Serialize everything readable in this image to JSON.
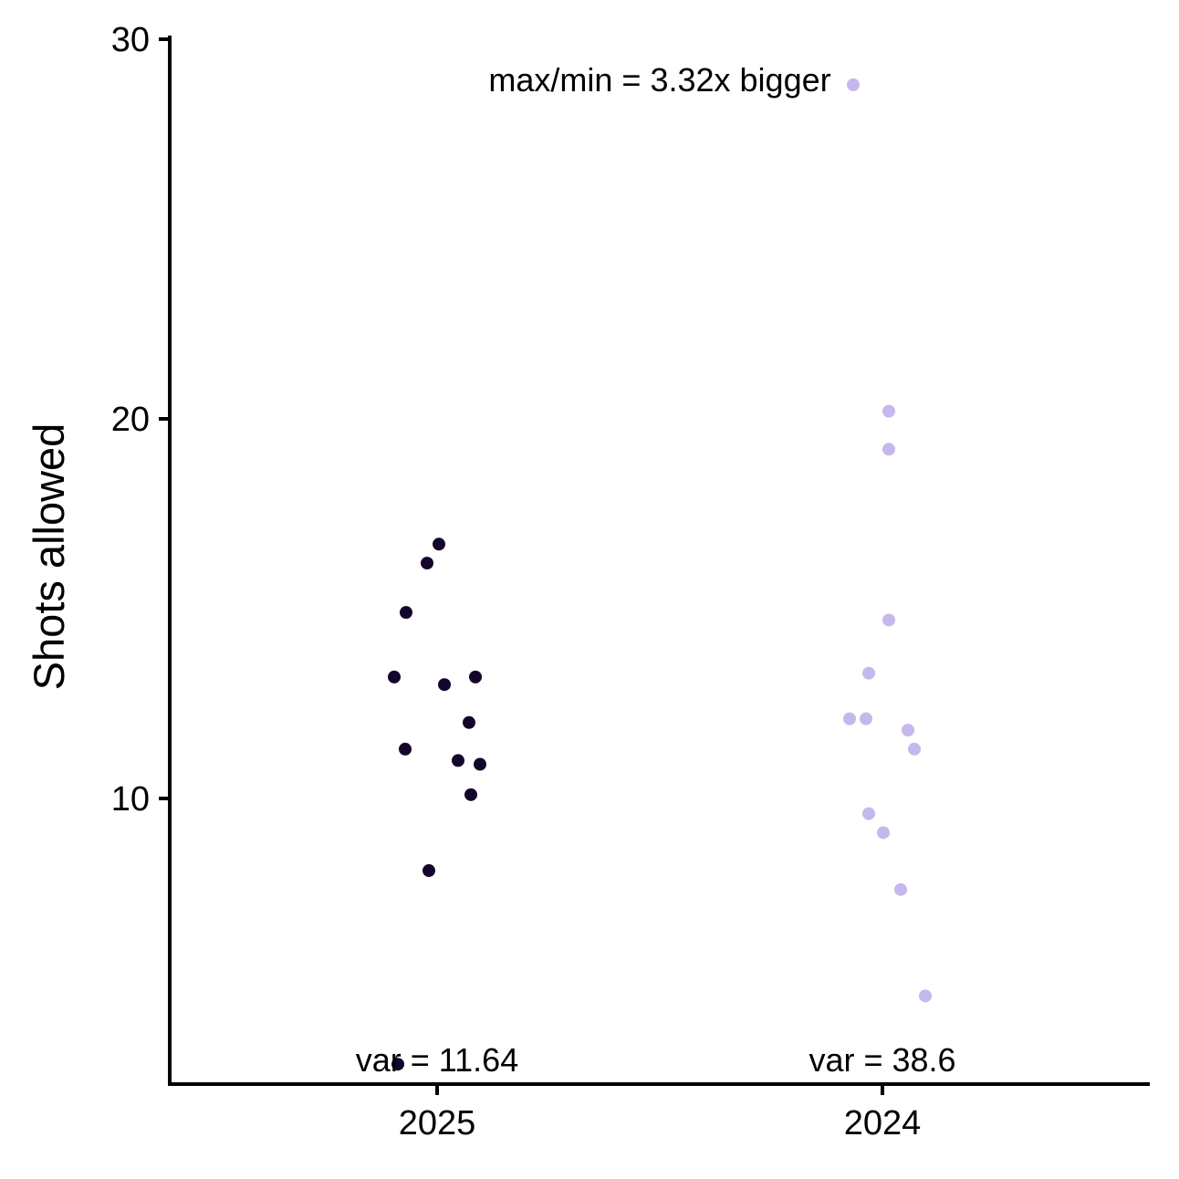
{
  "chart_data": {
    "type": "scatter",
    "title": "",
    "xlabel": "",
    "ylabel": "Shots allowed",
    "categories": [
      "2025",
      "2024"
    ],
    "ylim": [
      2.3,
      30
    ],
    "yticks": [
      10,
      20,
      30
    ],
    "grid": false,
    "legend": "none",
    "series": [
      {
        "category": "2025",
        "color": "#14062b",
        "points": [
          {
            "x": "2025",
            "y": 16.7
          },
          {
            "x": "2025",
            "y": 16.2
          },
          {
            "x": "2025",
            "y": 14.9
          },
          {
            "x": "2025",
            "y": 13.2
          },
          {
            "x": "2025",
            "y": 13.0
          },
          {
            "x": "2025",
            "y": 13.2
          },
          {
            "x": "2025",
            "y": 12.0
          },
          {
            "x": "2025",
            "y": 11.3
          },
          {
            "x": "2025",
            "y": 11.0
          },
          {
            "x": "2025",
            "y": 10.9
          },
          {
            "x": "2025",
            "y": 10.1
          },
          {
            "x": "2025",
            "y": 8.1
          },
          {
            "x": "2025",
            "y": 3.0
          }
        ]
      },
      {
        "category": "2024",
        "color": "#c6b8ec",
        "points": [
          {
            "x": "2024",
            "y": 28.8
          },
          {
            "x": "2024",
            "y": 20.2
          },
          {
            "x": "2024",
            "y": 19.2
          },
          {
            "x": "2024",
            "y": 14.7
          },
          {
            "x": "2024",
            "y": 13.3
          },
          {
            "x": "2024",
            "y": 12.1
          },
          {
            "x": "2024",
            "y": 12.1
          },
          {
            "x": "2024",
            "y": 11.8
          },
          {
            "x": "2024",
            "y": 11.3
          },
          {
            "x": "2024",
            "y": 9.6
          },
          {
            "x": "2024",
            "y": 9.1
          },
          {
            "x": "2024",
            "y": 7.6
          },
          {
            "x": "2024",
            "y": 4.8
          }
        ]
      }
    ],
    "annotations": {
      "top": "max/min = 3.32x bigger",
      "var": [
        {
          "category": "2025",
          "text": "var = 11.64"
        },
        {
          "category": "2024",
          "text": "var = 38.6"
        }
      ]
    }
  }
}
